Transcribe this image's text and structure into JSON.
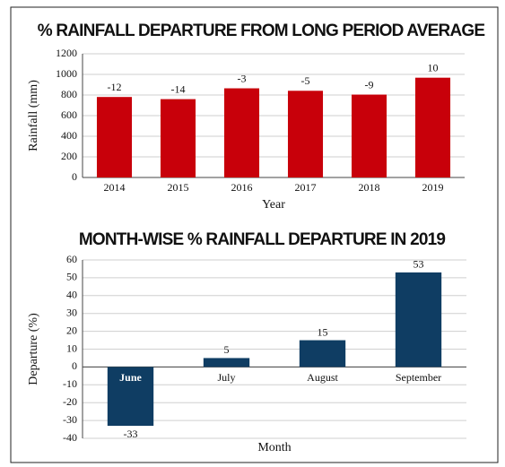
{
  "chart_data": [
    {
      "type": "bar",
      "title": "% RAINFALL DEPARTURE FROM LONG PERIOD AVERAGE",
      "x_label": "Year",
      "y_label": "Rainfall (mm)",
      "categories": [
        "2014",
        "2015",
        "2016",
        "2017",
        "2018",
        "2019"
      ],
      "values": [
        781,
        760,
        865,
        841,
        804,
        968
      ],
      "departure_labels": [
        -12,
        -14,
        -3,
        -5,
        -9,
        10
      ],
      "color": "#c8000a",
      "ylim": [
        0,
        1200
      ],
      "yticks": [
        0,
        200,
        400,
        600,
        800,
        1000,
        1200
      ],
      "grid": true
    },
    {
      "type": "bar",
      "title": "MONTH-WISE % RAINFALL DEPARTURE IN 2019",
      "x_label": "Month",
      "y_label": "Departure (%)",
      "categories": [
        "June",
        "July",
        "August",
        "September"
      ],
      "values": [
        -33,
        5,
        15,
        53
      ],
      "color": "#0f3d63",
      "ylim": [
        -40,
        60
      ],
      "yticks": [
        -40,
        -30,
        -20,
        -10,
        0,
        10,
        20,
        30,
        40,
        50,
        60
      ],
      "grid": true
    }
  ]
}
